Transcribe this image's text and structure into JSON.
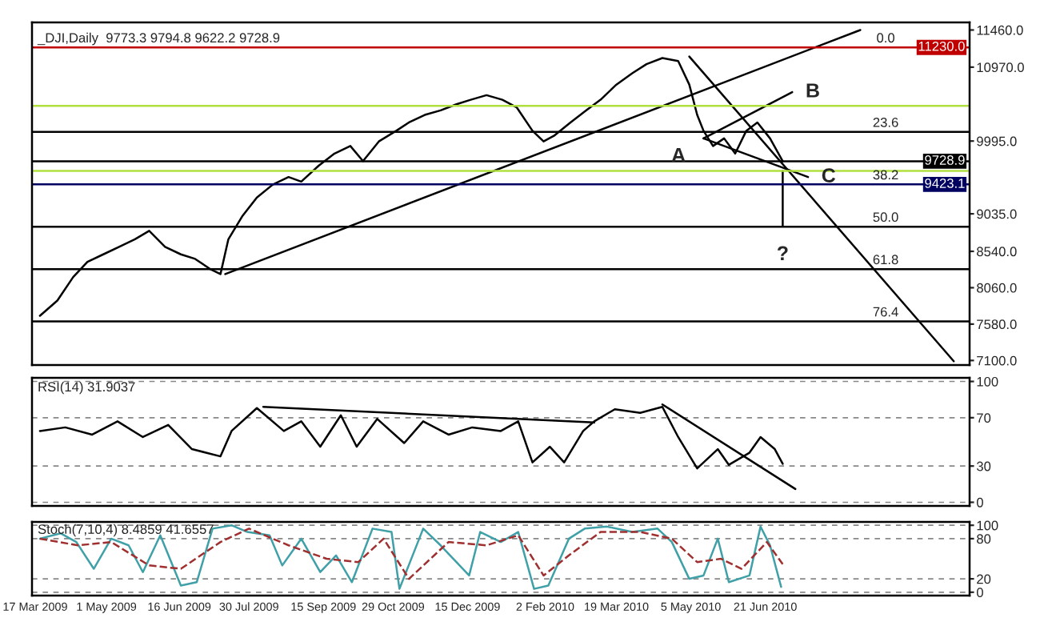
{
  "chart_data": [
    {
      "type": "line",
      "xlim": [
        "2009-03-15",
        "2010-10-28"
      ],
      "ylim": [
        7040,
        11560
      ],
      "yticks": [
        {
          "value": 7100,
          "label": "7100.0"
        },
        {
          "value": 7580,
          "label": "7580.0"
        },
        {
          "value": 8060,
          "label": "8060.0"
        },
        {
          "value": 8540,
          "label": "8540.0"
        },
        {
          "value": 9035,
          "label": "9035.0"
        },
        {
          "value": 9995,
          "label": "9995.0"
        },
        {
          "value": 10970,
          "label": "10970.0"
        },
        {
          "value": 11460,
          "label": "11460.0"
        }
      ],
      "tick_labels": "y",
      "series": [
        {
          "color": "#000000",
          "x": [
            "2009-03-20",
            "2009-03-31",
            "2009-04-10",
            "2009-04-19",
            "2009-04-29",
            "2009-05-09",
            "2009-05-19",
            "2009-05-28",
            "2009-06-07",
            "2009-06-17",
            "2009-06-26",
            "2009-07-06",
            "2009-07-12",
            "2009-07-17",
            "2009-07-26",
            "2009-08-04",
            "2009-08-14",
            "2009-08-24",
            "2009-09-01",
            "2009-09-12",
            "2009-09-22",
            "2009-10-02",
            "2009-10-10",
            "2009-10-20",
            "2009-10-31",
            "2009-11-08",
            "2009-11-18",
            "2009-11-28",
            "2009-12-08",
            "2009-12-17",
            "2009-12-27",
            "2010-01-06",
            "2010-01-15",
            "2010-01-25",
            "2010-02-01",
            "2010-02-08",
            "2010-02-18",
            "2010-02-28",
            "2010-03-09",
            "2010-03-19",
            "2010-03-29",
            "2010-04-07",
            "2010-04-17",
            "2010-04-27",
            "2010-05-04",
            "2010-05-09",
            "2010-05-13",
            "2010-05-19",
            "2010-05-26",
            "2010-06-02",
            "2010-06-09",
            "2010-06-16",
            "2010-06-24",
            "2010-07-02"
          ],
          "values": [
            7690,
            7890,
            8200,
            8400,
            8500,
            8600,
            8700,
            8810,
            8600,
            8500,
            8440,
            8300,
            8240,
            8700,
            9010,
            9250,
            9420,
            9520,
            9460,
            9670,
            9830,
            9930,
            9730,
            9990,
            10130,
            10240,
            10340,
            10400,
            10480,
            10540,
            10600,
            10540,
            10440,
            10130,
            9990,
            10070,
            10240,
            10400,
            10540,
            10740,
            10890,
            11010,
            11090,
            11050,
            10740,
            10340,
            10130,
            9930,
            10030,
            9830,
            10130,
            10240,
            10030,
            9728.9
          ]
        },
        {
          "color": "#000000",
          "x": [
            "2009-07-15",
            "2010-08-20"
          ],
          "values": [
            8240,
            11460
          ]
        },
        {
          "color": "#000000",
          "x": [
            "2010-05-04",
            "2010-10-18"
          ],
          "values": [
            11110,
            7090
          ]
        },
        {
          "color": "#000000",
          "x": [
            "2010-05-13",
            "2010-07-08"
          ],
          "values": [
            10030,
            10640
          ]
        },
        {
          "color": "#000000",
          "x": [
            "2010-05-13",
            "2010-07-18"
          ],
          "values": [
            10030,
            9520
          ]
        },
        {
          "color": "#000000",
          "x": [
            "2010-07-02",
            "2010-07-02"
          ],
          "values": [
            9600,
            8880
          ]
        }
      ],
      "ref_lines": [
        {
          "axis": "y",
          "value": 11230,
          "label": "11230.0",
          "color": "#c00000"
        },
        {
          "axis": "y",
          "value": 10115,
          "color": "#000000"
        },
        {
          "axis": "y",
          "value": 9423.1,
          "label": "9423.1",
          "color": "#000060"
        },
        {
          "axis": "y",
          "value": 8865,
          "color": "#000000"
        },
        {
          "axis": "y",
          "value": 8305,
          "color": "#000000"
        },
        {
          "axis": "y",
          "value": 7615,
          "color": "#000000"
        },
        {
          "axis": "y",
          "value": 9728.9,
          "label": "9728.9",
          "color": "#000000"
        },
        {
          "axis": "y",
          "value": 10460,
          "color": "#b0e040"
        },
        {
          "axis": "y",
          "value": 9600,
          "color": "#b0e040"
        }
      ],
      "annotations": [
        "_DJI,Daily  9773.3 9794.8 9622.2 9728.9",
        {
          "text": "0.0",
          "x": "2010-09-05",
          "y": 11230
        },
        {
          "text": "23.6",
          "x": "2010-09-05",
          "y": 10115
        },
        {
          "text": "38.2",
          "x": "2010-09-05",
          "y": 9423.1
        },
        {
          "text": "50.0",
          "x": "2010-09-05",
          "y": 8865
        },
        {
          "text": "61.8",
          "x": "2010-09-05",
          "y": 8305
        },
        {
          "text": "76.4",
          "x": "2010-09-05",
          "y": 7615
        },
        {
          "text": "A",
          "x": "2010-05-13",
          "y": 10030
        },
        {
          "text": "B",
          "x": "2010-07-08",
          "y": 10640
        },
        {
          "text": "C",
          "x": "2010-07-18",
          "y": 9520
        },
        {
          "text": "?",
          "x": "2010-07-02",
          "y": 8880
        }
      ]
    },
    {
      "type": "line",
      "xlim": [
        "2009-03-15",
        "2010-10-28"
      ],
      "ylim": [
        -3,
        103
      ],
      "yticks": [
        0,
        30,
        70,
        100
      ],
      "tick_labels": "y",
      "grid": "y",
      "series": [
        {
          "color": "#000000",
          "x": [
            "2009-03-20",
            "2009-04-05",
            "2009-04-22",
            "2009-05-08",
            "2009-05-24",
            "2009-06-09",
            "2009-06-24",
            "2009-07-12",
            "2009-07-19",
            "2009-08-04",
            "2009-08-21",
            "2009-09-01",
            "2009-09-13",
            "2009-09-26",
            "2009-10-06",
            "2009-10-19",
            "2009-11-05",
            "2009-11-17",
            "2009-12-03",
            "2009-12-18",
            "2010-01-05",
            "2010-01-16",
            "2010-01-25",
            "2010-02-05",
            "2010-02-14",
            "2010-02-26",
            "2010-03-05",
            "2010-03-18",
            "2010-04-03",
            "2010-04-17",
            "2010-04-27",
            "2010-05-09",
            "2010-05-22",
            "2010-05-29",
            "2010-06-11",
            "2010-06-18",
            "2010-06-27",
            "2010-07-02"
          ],
          "values": [
            59,
            62,
            56,
            67,
            54,
            64,
            44,
            38,
            59,
            78,
            59,
            67,
            46,
            72,
            46,
            69,
            49,
            67,
            56,
            62,
            59,
            67,
            33,
            46,
            33,
            59,
            67,
            77,
            74,
            79,
            54,
            28,
            44,
            31,
            41,
            54,
            44,
            31.9
          ]
        },
        {
          "color": "#000000",
          "x": [
            "2009-08-08",
            "2010-03-05"
          ],
          "values": [
            79,
            66
          ]
        },
        {
          "color": "#000000",
          "x": [
            "2010-04-17",
            "2010-07-10"
          ],
          "values": [
            81,
            11
          ]
        }
      ],
      "annotations": [
        "RSI(14) 31.9037"
      ]
    },
    {
      "type": "line",
      "xlim": [
        "2009-03-15",
        "2010-10-28"
      ],
      "ylim": [
        -5,
        105
      ],
      "xticks": [
        {
          "value": "2009-03-17",
          "label": "17 Mar 2009"
        },
        {
          "value": "2009-05-01",
          "label": "1 May 2009"
        },
        {
          "value": "2009-06-16",
          "label": "16 Jun 2009"
        },
        {
          "value": "2009-07-30",
          "label": "30 Jul 2009"
        },
        {
          "value": "2009-09-15",
          "label": "15 Sep 2009"
        },
        {
          "value": "2009-10-29",
          "label": "29 Oct 2009"
        },
        {
          "value": "2009-12-15",
          "label": "15 Dec 2009"
        },
        {
          "value": "2010-02-02",
          "label": "2 Feb 2010"
        },
        {
          "value": "2010-03-19",
          "label": "19 Mar 2010"
        },
        {
          "value": "2010-05-05",
          "label": "5 May 2010"
        },
        {
          "value": "2010-06-21",
          "label": "21 Jun 2010"
        }
      ],
      "yticks": [
        0,
        20,
        80,
        100
      ],
      "grid": "y",
      "series": [
        {
          "color": "#40a0a8",
          "x": [
            "2009-03-20",
            "2009-04-02",
            "2009-04-12",
            "2009-04-23",
            "2009-05-04",
            "2009-05-15",
            "2009-05-24",
            "2009-06-04",
            "2009-06-17",
            "2009-06-27",
            "2009-07-07",
            "2009-07-19",
            "2009-07-29",
            "2009-08-12",
            "2009-08-20",
            "2009-09-01",
            "2009-09-13",
            "2009-09-23",
            "2009-10-03",
            "2009-10-16",
            "2009-10-28",
            "2009-11-02",
            "2009-11-17",
            "2009-11-28",
            "2009-12-16",
            "2009-12-23",
            "2010-01-05",
            "2010-01-16",
            "2010-01-26",
            "2010-02-04",
            "2010-02-17",
            "2010-02-27",
            "2010-03-13",
            "2010-03-29",
            "2010-04-14",
            "2010-04-23",
            "2010-05-04",
            "2010-05-13",
            "2010-05-22",
            "2010-05-29",
            "2010-06-11",
            "2010-06-18",
            "2010-06-24",
            "2010-07-01"
          ],
          "values": [
            80,
            88,
            75,
            35,
            80,
            70,
            30,
            85,
            10,
            15,
            95,
            100,
            90,
            85,
            40,
            80,
            30,
            55,
            15,
            95,
            90,
            5,
            95,
            70,
            25,
            90,
            75,
            90,
            5,
            10,
            80,
            95,
            98,
            90,
            95,
            75,
            20,
            25,
            80,
            15,
            25,
            98,
            70,
            8
          ]
        },
        {
          "color": "#a03030",
          "line_style": "dashed",
          "x": [
            "2009-03-20",
            "2009-04-13",
            "2009-05-04",
            "2009-05-28",
            "2009-06-17",
            "2009-07-12",
            "2009-07-30",
            "2009-08-24",
            "2009-09-17",
            "2009-10-07",
            "2009-10-23",
            "2009-11-08",
            "2009-12-03",
            "2009-12-27",
            "2010-01-16",
            "2010-02-01",
            "2010-02-17",
            "2010-03-09",
            "2010-04-03",
            "2010-04-23",
            "2010-05-09",
            "2010-05-24",
            "2010-06-06",
            "2010-06-22",
            "2010-07-02"
          ],
          "values": [
            80,
            70,
            75,
            40,
            35,
            75,
            95,
            70,
            50,
            45,
            80,
            20,
            75,
            70,
            85,
            25,
            55,
            90,
            90,
            80,
            45,
            50,
            35,
            75,
            42
          ]
        }
      ],
      "annotations": [
        "Stoch(7,10,4) 8.4859 41.6557"
      ]
    }
  ]
}
